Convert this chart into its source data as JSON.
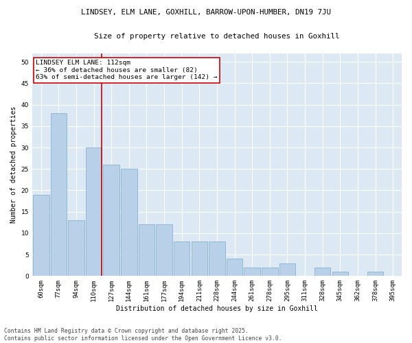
{
  "title_line1": "LINDSEY, ELM LANE, GOXHILL, BARROW-UPON-HUMBER, DN19 7JU",
  "title_line2": "Size of property relative to detached houses in Goxhill",
  "xlabel": "Distribution of detached houses by size in Goxhill",
  "ylabel": "Number of detached properties",
  "categories": [
    "60sqm",
    "77sqm",
    "94sqm",
    "110sqm",
    "127sqm",
    "144sqm",
    "161sqm",
    "177sqm",
    "194sqm",
    "211sqm",
    "228sqm",
    "244sqm",
    "261sqm",
    "278sqm",
    "295sqm",
    "311sqm",
    "328sqm",
    "345sqm",
    "362sqm",
    "378sqm",
    "395sqm"
  ],
  "values": [
    19,
    38,
    13,
    30,
    26,
    25,
    12,
    12,
    8,
    8,
    8,
    4,
    2,
    2,
    3,
    0,
    2,
    1,
    0,
    1,
    0
  ],
  "bar_color": "#b8d0e8",
  "bar_edge_color": "#7aaac8",
  "background_color": "#dce9f5",
  "grid_color": "#ffffff",
  "vline_color": "#cc0000",
  "vline_pos": 3.45,
  "annotation_text": "LINDSEY ELM LANE: 112sqm\n← 36% of detached houses are smaller (82)\n63% of semi-detached houses are larger (142) →",
  "annotation_box_facecolor": "#ffffff",
  "annotation_box_edgecolor": "#cc0000",
  "ylim": [
    0,
    52
  ],
  "yticks": [
    0,
    5,
    10,
    15,
    20,
    25,
    30,
    35,
    40,
    45,
    50
  ],
  "figure_bg": "#ffffff",
  "footnote": "Contains HM Land Registry data © Crown copyright and database right 2025.\nContains public sector information licensed under the Open Government Licence v3.0.",
  "title_fontsize": 7.8,
  "subtitle_fontsize": 7.8,
  "axis_label_fontsize": 7.0,
  "tick_fontsize": 6.5,
  "annotation_fontsize": 6.8,
  "footnote_fontsize": 5.8
}
